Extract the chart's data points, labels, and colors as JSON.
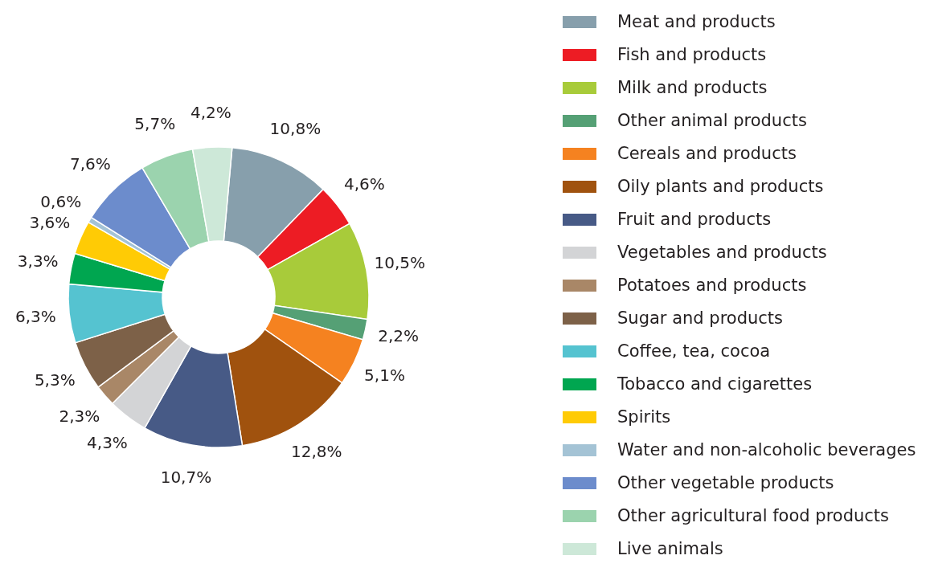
{
  "chart_data": {
    "type": "donut",
    "legend": "right",
    "categories": [
      "Meat and products",
      "Fish and products",
      "Milk and products",
      "Other animal products",
      "Cereals and products",
      "Oily plants and products",
      "Fruit and products",
      "Vegetables and products",
      "Potatoes and products",
      "Sugar and products",
      "Coffee, tea, cocoa",
      "Tobacco and cigarettes",
      "Spirits",
      "Water and non-alcoholic beverages",
      "Other vegetable products",
      "Other agricultural food products",
      "Live animals"
    ],
    "values": [
      10.8,
      4.6,
      10.5,
      2.2,
      5.1,
      12.8,
      10.7,
      4.3,
      2.3,
      5.3,
      6.3,
      3.3,
      3.6,
      0.6,
      7.6,
      5.7,
      4.2
    ],
    "value_labels": [
      "10,8%",
      "4,6%",
      "10,5%",
      "2,2%",
      "5,1%",
      "12,8%",
      "10,7%",
      "4,3%",
      "2,3%",
      "5,3%",
      "6,3%",
      "3,3%",
      "3,6%",
      "0,6%",
      "7,6%",
      "5,7%",
      "4,2%"
    ],
    "colors": [
      "#879fac",
      "#ed1c24",
      "#a8cb3a",
      "#55a075",
      "#f58220",
      "#a0520e",
      "#475a86",
      "#d3d4d6",
      "#a98767",
      "#7d6148",
      "#55c3d0",
      "#00a650",
      "#ffcb05",
      "#a4c3d5",
      "#6c8ccc",
      "#9bd3ae",
      "#cde8d8"
    ]
  }
}
